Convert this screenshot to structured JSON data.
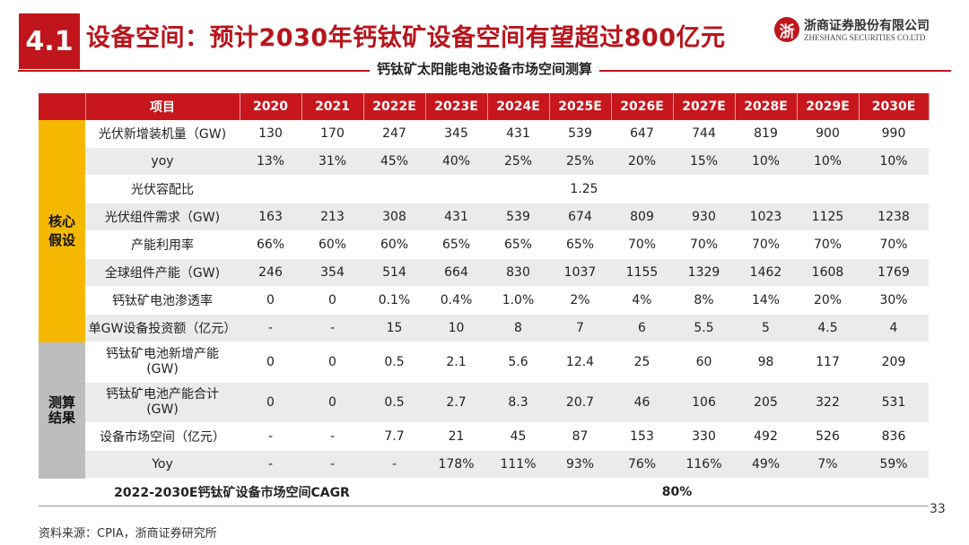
{
  "header": {
    "section_number": "4.1",
    "title": "设备空间：预计2030年钙钛矿设备空间有望超过800亿元",
    "logo_cn": "浙商证券股份有限公司",
    "logo_en": "ZHESHANG SECURITIES CO.LTD",
    "logo_mark": "浙"
  },
  "subtitle": "钙钛矿太阳能电池设备市场空间测算",
  "table": {
    "item_header": "项目",
    "years": [
      "2020",
      "2021",
      "2022E",
      "2023E",
      "2024E",
      "2025E",
      "2026E",
      "2027E",
      "2028E",
      "2029E",
      "2030E"
    ],
    "groups": [
      {
        "label_line1": "核心",
        "label_line2": "假设",
        "color": "#f5b800"
      },
      {
        "label_line1": "测算",
        "label_line2": "结果",
        "color": "#bdbdbd"
      }
    ],
    "rows": [
      {
        "label": "光伏新增装机量（GW)",
        "values": [
          "130",
          "170",
          "247",
          "345",
          "431",
          "539",
          "647",
          "744",
          "819",
          "900",
          "990"
        ]
      },
      {
        "label": "yoy",
        "values": [
          "13%",
          "31%",
          "45%",
          "40%",
          "25%",
          "25%",
          "20%",
          "15%",
          "10%",
          "10%",
          "10%"
        ]
      },
      {
        "label": "光伏容配比",
        "merged_value": "1.25"
      },
      {
        "label": "光伏组件需求（GW)",
        "values": [
          "163",
          "213",
          "308",
          "431",
          "539",
          "674",
          "809",
          "930",
          "1023",
          "1125",
          "1238"
        ]
      },
      {
        "label": "产能利用率",
        "values": [
          "66%",
          "60%",
          "60%",
          "65%",
          "65%",
          "65%",
          "70%",
          "70%",
          "70%",
          "70%",
          "70%"
        ]
      },
      {
        "label": "全球组件产能（GW)",
        "values": [
          "246",
          "354",
          "514",
          "664",
          "830",
          "1037",
          "1155",
          "1329",
          "1462",
          "1608",
          "1769"
        ]
      },
      {
        "label": "钙钛矿电池渗透率",
        "values": [
          "0",
          "0",
          "0.1%",
          "0.4%",
          "1.0%",
          "2%",
          "4%",
          "8%",
          "14%",
          "20%",
          "30%"
        ]
      },
      {
        "label": "单GW设备投资额（亿元）",
        "values": [
          "-",
          "-",
          "15",
          "10",
          "8",
          "7",
          "6",
          "5.5",
          "5",
          "4.5",
          "4"
        ]
      },
      {
        "label_line1": "钙钛矿电池新增产能",
        "label_line2": "(GW)",
        "values": [
          "0",
          "0",
          "0.5",
          "2.1",
          "5.6",
          "12.4",
          "25",
          "60",
          "98",
          "117",
          "209"
        ]
      },
      {
        "label_line1": "钙钛矿电池产能合计",
        "label_line2": "(GW)",
        "values": [
          "0",
          "0",
          "0.5",
          "2.7",
          "8.3",
          "20.7",
          "46",
          "106",
          "205",
          "322",
          "531"
        ]
      },
      {
        "label": "设备市场空间（亿元）",
        "values": [
          "-",
          "-",
          "7.7",
          "21",
          "45",
          "87",
          "153",
          "330",
          "492",
          "526",
          "836"
        ]
      },
      {
        "label": "Yoy",
        "values": [
          "-",
          "-",
          "-",
          "178%",
          "111%",
          "93%",
          "76%",
          "116%",
          "49%",
          "7%",
          "59%"
        ]
      }
    ],
    "cagr_label": "2022-2030E钙钛矿设备市场空间CAGR",
    "cagr_value": "80%"
  },
  "footer": {
    "source": "资料来源：CPIA，浙商证券研究所",
    "page_number": "33"
  }
}
